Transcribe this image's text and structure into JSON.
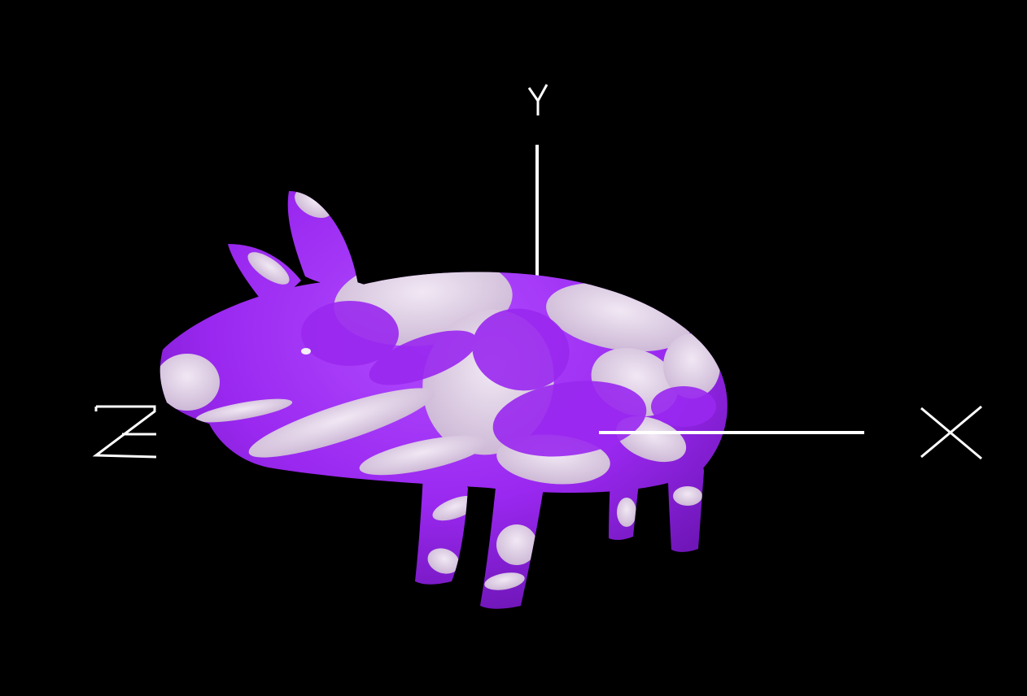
{
  "scene": {
    "background_color": "#000000",
    "axis_color": "#ffffff",
    "axes": {
      "x_label": "X",
      "y_label": "Y",
      "z_label": "Z"
    },
    "model": {
      "base_color": "#9a28f0",
      "highlight_color": "#b14cff",
      "shadow_color": "#6f16b8",
      "spot_color": "#e7dcea"
    }
  }
}
